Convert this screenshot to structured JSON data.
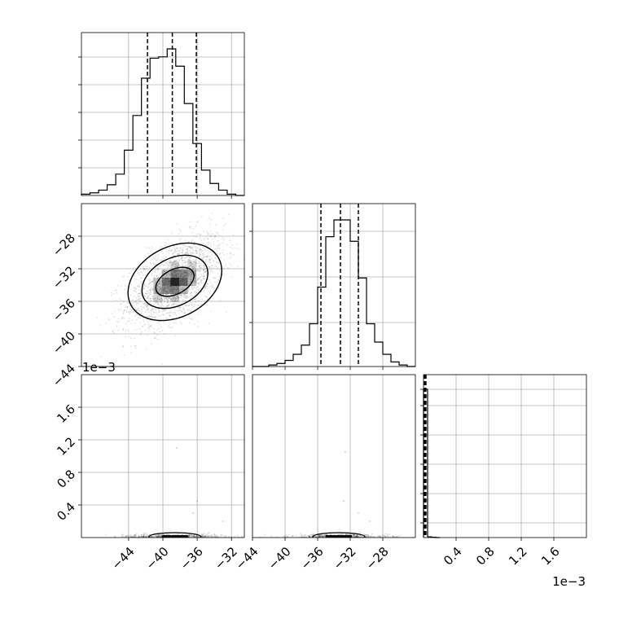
{
  "figure": {
    "type": "corner",
    "axis_unit_label": "1e−3"
  },
  "chart_data": [
    {
      "panel": "hist-param1",
      "type": "bar",
      "x_range": [
        -49.5,
        -30.5
      ],
      "bin_edges": [
        -49.5,
        -48.5,
        -47.5,
        -46.5,
        -45.5,
        -44.5,
        -43.5,
        -42.5,
        -41.5,
        -40.5,
        -39.5,
        -38.5,
        -37.5,
        -36.5,
        -35.5,
        -34.5,
        -33.5,
        -32.5,
        -31.5,
        -30.5
      ],
      "counts": [
        1,
        2,
        4,
        8,
        16,
        34,
        60,
        88,
        103,
        104,
        110,
        97,
        69,
        39,
        19,
        9,
        4,
        1,
        0
      ],
      "quantiles": [
        -41.8,
        -38.9,
        -36.1
      ],
      "grid": true,
      "xtick_values": [
        -44,
        -40,
        -36,
        -32
      ]
    },
    {
      "panel": "scatter-param1-param2",
      "type": "scatter",
      "x_range": [
        -49.5,
        -30.5
      ],
      "y_range": [
        -44.0,
        -24.0
      ],
      "center": [
        -38.6,
        -33.6
      ],
      "spread": [
        2.9,
        2.9
      ],
      "correlation": 0.55,
      "contours": [
        {
          "level": "outer",
          "radius_x": 5.8,
          "radius_y": 4.3
        },
        {
          "level": "middle",
          "radius_x": 4.1,
          "radius_y": 2.9
        },
        {
          "level": "inner",
          "radius_x": 2.4,
          "radius_y": 1.5
        }
      ],
      "grid": true,
      "yticks": [
        "−28",
        "−32",
        "−36",
        "−40",
        "−44"
      ],
      "ytick_values": [
        -28,
        -32,
        -36,
        -40,
        -44
      ]
    },
    {
      "panel": "hist-param2",
      "type": "bar",
      "x_range": [
        -44.0,
        -24.0
      ],
      "bin_edges": [
        -44,
        -43,
        -42,
        -41,
        -40,
        -39,
        -38,
        -37,
        -36,
        -35,
        -34,
        -33,
        -32,
        -31,
        -30,
        -29,
        -28,
        -27,
        -26,
        -25,
        -24
      ],
      "counts": [
        0,
        0,
        1,
        2,
        4,
        8,
        14,
        28,
        52,
        85,
        96,
        96,
        82,
        58,
        28,
        16,
        8,
        3,
        1,
        0
      ],
      "quantiles": [
        -35.6,
        -33.2,
        -31.0
      ],
      "grid": true,
      "xtick_values": [
        -44,
        -40,
        -36,
        -32,
        -28
      ]
    },
    {
      "panel": "scatter-param1-param3",
      "type": "scatter",
      "x_range": [
        -49.5,
        -30.5
      ],
      "y_range": [
        0.0,
        0.002
      ],
      "center": [
        -38.6,
        3e-05
      ],
      "grid": true,
      "xticks": [
        "−44",
        "−40",
        "−36",
        "−32"
      ],
      "xtick_values": [
        -44,
        -40,
        -36,
        -32
      ],
      "yticks": [
        "0.4",
        "0.8",
        "1.2",
        "1.6"
      ],
      "ytick_values": [
        0.0004,
        0.0008,
        0.0012,
        0.0016
      ]
    },
    {
      "panel": "scatter-param2-param3",
      "type": "scatter",
      "x_range": [
        -44.0,
        -24.0
      ],
      "y_range": [
        0.0,
        0.002
      ],
      "center": [
        -33.4,
        3e-05
      ],
      "grid": true,
      "xticks": [
        "−44",
        "−40",
        "−36",
        "−32",
        "−28"
      ],
      "xtick_values": [
        -44,
        -40,
        -36,
        -32,
        -28
      ]
    },
    {
      "panel": "hist-param3",
      "type": "bar",
      "x_range": [
        0.0,
        0.002
      ],
      "bin_edges": [
        0.0,
        5e-05,
        0.0001,
        0.00015,
        0.0002
      ],
      "counts": [
        400,
        2,
        1,
        0
      ],
      "quantiles": [
        1e-05,
        2e-05,
        3e-05
      ],
      "grid": true,
      "xticks": [
        "0.4",
        "0.8",
        "1.2",
        "1.6"
      ],
      "xtick_values": [
        0.0004,
        0.0008,
        0.0012,
        0.0016
      ]
    }
  ]
}
